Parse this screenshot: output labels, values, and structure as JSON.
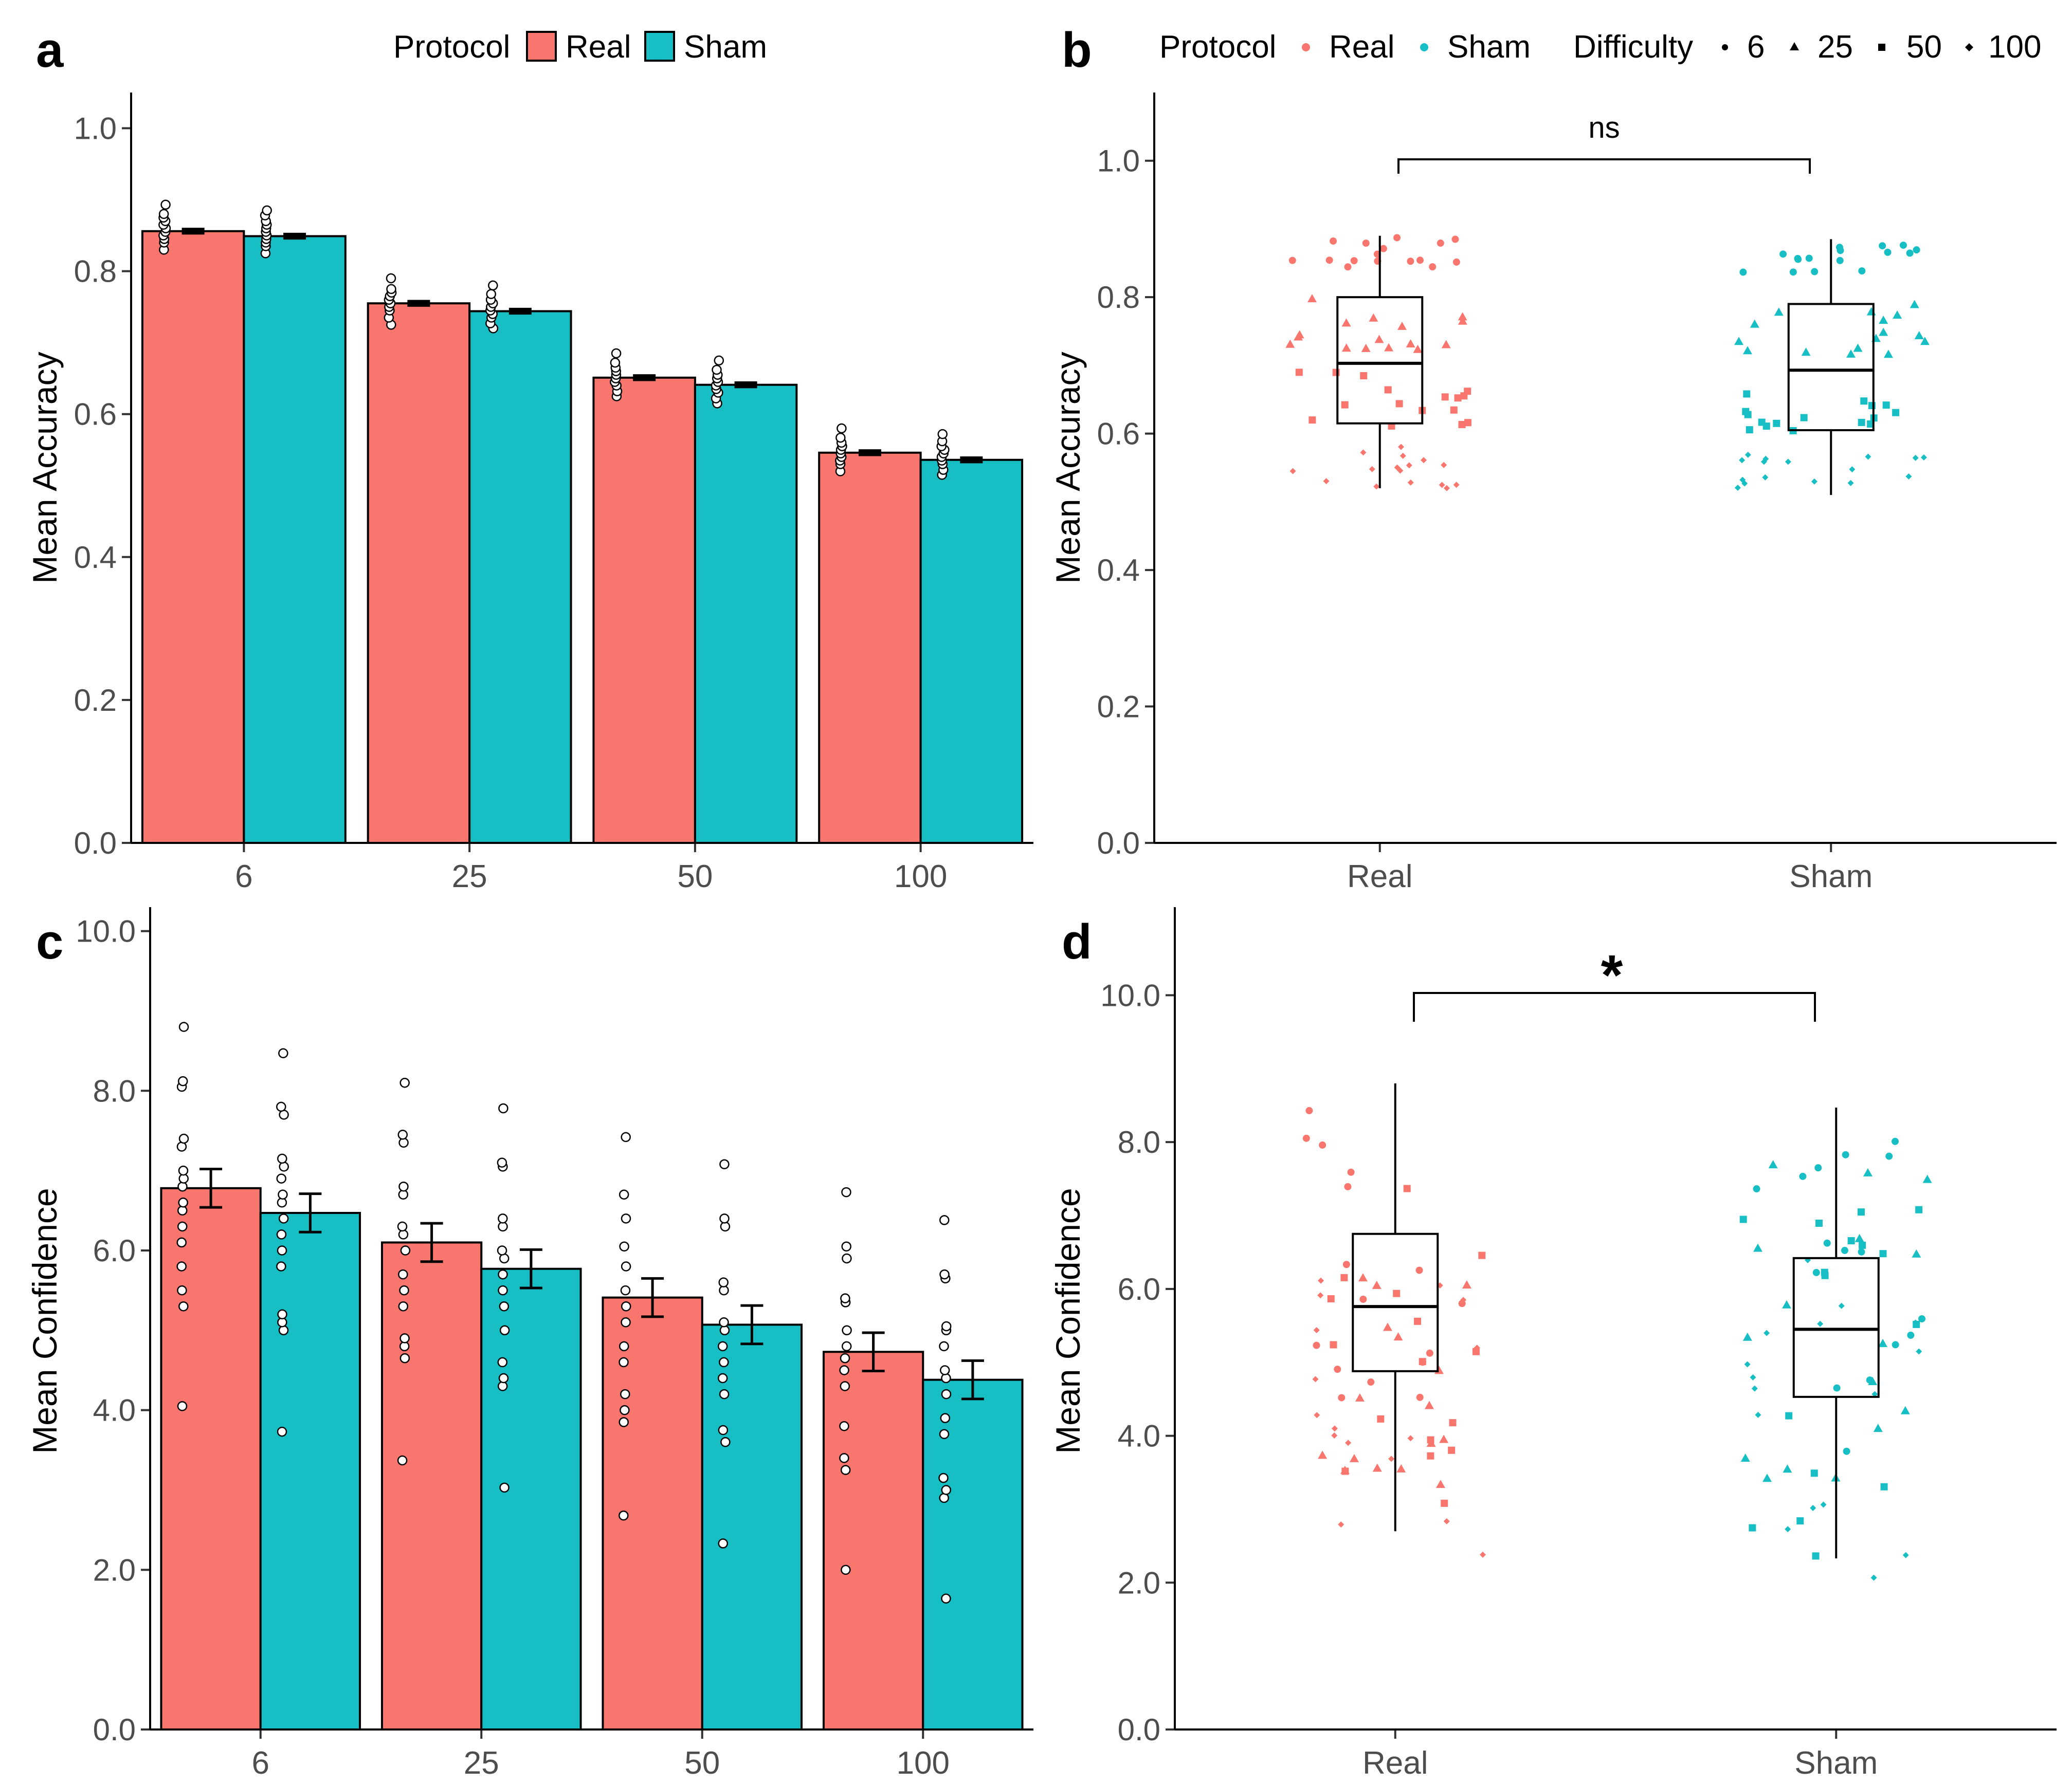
{
  "colors": {
    "real": "#F8766D",
    "sham": "#17BFC4",
    "axis": "#000000",
    "tick_text": "#4d4d4d"
  },
  "chart_data": [
    {
      "panel": "a",
      "type": "bar",
      "ylabel": "Mean Accuracy",
      "xlabel": "",
      "ylim": [
        0,
        1.05
      ],
      "yticks": [
        "0.0",
        "0.2",
        "0.4",
        "0.6",
        "0.8",
        "1.0"
      ],
      "ytick_values": [
        0,
        0.2,
        0.4,
        0.6,
        0.8,
        1.0
      ],
      "categories": [
        "6",
        "25",
        "50",
        "100"
      ],
      "legend": {
        "title": "Protocol",
        "entries": [
          "Real",
          "Sham"
        ],
        "placement": "top"
      },
      "series": [
        {
          "name": "Real",
          "values": [
            0.856,
            0.755,
            0.651,
            0.546
          ],
          "errors": [
            0.003,
            0.003,
            0.003,
            0.003
          ],
          "points": [
            [
              0.83,
              0.84,
              0.845,
              0.85,
              0.855,
              0.86,
              0.865,
              0.87,
              0.875,
              0.88,
              0.893
            ],
            [
              0.725,
              0.735,
              0.745,
              0.75,
              0.755,
              0.76,
              0.765,
              0.77,
              0.775,
              0.79
            ],
            [
              0.625,
              0.632,
              0.64,
              0.645,
              0.65,
              0.655,
              0.66,
              0.665,
              0.672,
              0.685
            ],
            [
              0.52,
              0.53,
              0.535,
              0.54,
              0.545,
              0.55,
              0.555,
              0.56,
              0.567,
              0.58
            ]
          ]
        },
        {
          "name": "Sham",
          "values": [
            0.849,
            0.744,
            0.641,
            0.536
          ],
          "errors": [
            0.003,
            0.003,
            0.003,
            0.003
          ],
          "points": [
            [
              0.825,
              0.835,
              0.84,
              0.845,
              0.85,
              0.855,
              0.86,
              0.865,
              0.87,
              0.878,
              0.885
            ],
            [
              0.72,
              0.727,
              0.735,
              0.74,
              0.745,
              0.75,
              0.755,
              0.76,
              0.768,
              0.78
            ],
            [
              0.615,
              0.622,
              0.63,
              0.635,
              0.64,
              0.645,
              0.65,
              0.655,
              0.662,
              0.675
            ],
            [
              0.515,
              0.522,
              0.53,
              0.535,
              0.54,
              0.545,
              0.55,
              0.555,
              0.562,
              0.572
            ]
          ]
        }
      ]
    },
    {
      "panel": "b",
      "type": "box",
      "ylabel": "Mean Accuracy",
      "ylim": [
        0,
        1.1
      ],
      "yticks": [
        "0.0",
        "0.2",
        "0.4",
        "0.6",
        "0.8",
        "1.0"
      ],
      "ytick_values": [
        0,
        0.2,
        0.4,
        0.6,
        0.8,
        1.0
      ],
      "categories": [
        "Real",
        "Sham"
      ],
      "legend": {
        "title": "Protocol",
        "entries": [
          "Real",
          "Sham"
        ],
        "size_title": "Difficulty",
        "size_entries": [
          "6",
          "25",
          "50",
          "100"
        ],
        "placement": "top"
      },
      "annotation": {
        "label": "ns",
        "y": 1.0
      },
      "boxes": [
        {
          "name": "Real",
          "lower_whisker": 0.52,
          "q1": 0.615,
          "median": 0.703,
          "q3": 0.8,
          "upper_whisker": 0.89
        },
        {
          "name": "Sham",
          "lower_whisker": 0.51,
          "q1": 0.605,
          "median": 0.693,
          "q3": 0.79,
          "upper_whisker": 0.885
        }
      ],
      "difficulty_levels": [
        {
          "difficulty": "6",
          "real_range": [
            0.84,
            0.895
          ],
          "sham_range": [
            0.835,
            0.88
          ]
        },
        {
          "difficulty": "25",
          "real_range": [
            0.72,
            0.8
          ],
          "sham_range": [
            0.71,
            0.79
          ]
        },
        {
          "difficulty": "50",
          "real_range": [
            0.61,
            0.69
          ],
          "sham_range": [
            0.6,
            0.68
          ]
        },
        {
          "difficulty": "100",
          "real_range": [
            0.52,
            0.585
          ],
          "sham_range": [
            0.51,
            0.57
          ]
        }
      ]
    },
    {
      "panel": "c",
      "type": "bar",
      "ylabel": "Mean Confidence",
      "xlabel": "",
      "ylim": [
        0,
        10.3
      ],
      "yticks": [
        "0.0",
        "2.0",
        "4.0",
        "6.0",
        "8.0",
        "10.0"
      ],
      "ytick_values": [
        0,
        2,
        4,
        6,
        8,
        10
      ],
      "categories": [
        "6",
        "25",
        "50",
        "100"
      ],
      "series": [
        {
          "name": "Real",
          "values": [
            6.78,
            6.1,
            5.41,
            4.73
          ],
          "errors": [
            0.24,
            0.24,
            0.24,
            0.24
          ],
          "points": [
            [
              4.05,
              5.3,
              5.5,
              5.8,
              6.1,
              6.3,
              6.5,
              6.6,
              6.8,
              6.9,
              7.0,
              7.3,
              7.4,
              8.05,
              8.12,
              8.8
            ],
            [
              3.37,
              4.65,
              4.8,
              4.9,
              5.3,
              5.5,
              5.7,
              6.0,
              6.2,
              6.3,
              6.7,
              6.8,
              7.35,
              7.45,
              8.1
            ],
            [
              2.68,
              3.85,
              4.0,
              4.2,
              4.6,
              4.8,
              5.1,
              5.3,
              5.5,
              5.8,
              6.05,
              6.4,
              6.7,
              7.42
            ],
            [
              2.0,
              3.25,
              3.4,
              3.8,
              4.3,
              4.5,
              4.65,
              4.8,
              5.0,
              5.35,
              5.4,
              5.9,
              6.05,
              6.73
            ]
          ]
        },
        {
          "name": "Sham",
          "values": [
            6.47,
            5.77,
            5.07,
            4.38
          ],
          "errors": [
            0.24,
            0.24,
            0.24,
            0.24
          ],
          "points": [
            [
              3.73,
              5.0,
              5.1,
              5.2,
              5.8,
              6.0,
              6.2,
              6.4,
              6.6,
              6.7,
              6.9,
              7.05,
              7.15,
              7.7,
              7.8,
              8.47
            ],
            [
              3.03,
              4.3,
              4.4,
              4.6,
              5.0,
              5.3,
              5.5,
              5.7,
              5.9,
              6.0,
              6.3,
              6.4,
              7.05,
              7.1,
              7.78
            ],
            [
              2.33,
              3.6,
              3.75,
              4.2,
              4.4,
              4.6,
              4.8,
              5.0,
              5.1,
              5.5,
              5.6,
              6.3,
              6.4,
              7.08
            ],
            [
              1.64,
              2.9,
              3.0,
              3.15,
              3.7,
              3.9,
              4.2,
              4.4,
              4.5,
              4.8,
              5.0,
              5.05,
              5.65,
              5.7,
              6.38
            ]
          ]
        }
      ]
    },
    {
      "panel": "d",
      "type": "box",
      "ylabel": "Mean Confidence",
      "ylim": [
        0,
        11.2
      ],
      "yticks": [
        "0.0",
        "2.0",
        "4.0",
        "6.0",
        "8.0",
        "10.0"
      ],
      "ytick_values": [
        0,
        2,
        4,
        6,
        8,
        10
      ],
      "categories": [
        "Real",
        "Sham"
      ],
      "annotation": {
        "label": "*",
        "y": 10.0
      },
      "boxes": [
        {
          "name": "Real",
          "lower_whisker": 2.7,
          "q1": 4.88,
          "median": 5.76,
          "q3": 6.75,
          "upper_whisker": 8.8
        },
        {
          "name": "Sham",
          "lower_whisker": 2.33,
          "q1": 4.53,
          "median": 5.45,
          "q3": 6.42,
          "upper_whisker": 8.47
        }
      ],
      "difficulty_levels": [
        {
          "difficulty": "6",
          "real_range": [
            4.0,
            8.8
          ],
          "sham_range": [
            3.7,
            8.5
          ]
        },
        {
          "difficulty": "25",
          "real_range": [
            3.3,
            8.1
          ],
          "sham_range": [
            3.0,
            7.8
          ]
        },
        {
          "difficulty": "50",
          "real_range": [
            2.7,
            7.4
          ],
          "sham_range": [
            2.3,
            7.1
          ]
        },
        {
          "difficulty": "100",
          "real_range": [
            2.0,
            6.7
          ],
          "sham_range": [
            1.6,
            6.4
          ]
        }
      ]
    }
  ]
}
